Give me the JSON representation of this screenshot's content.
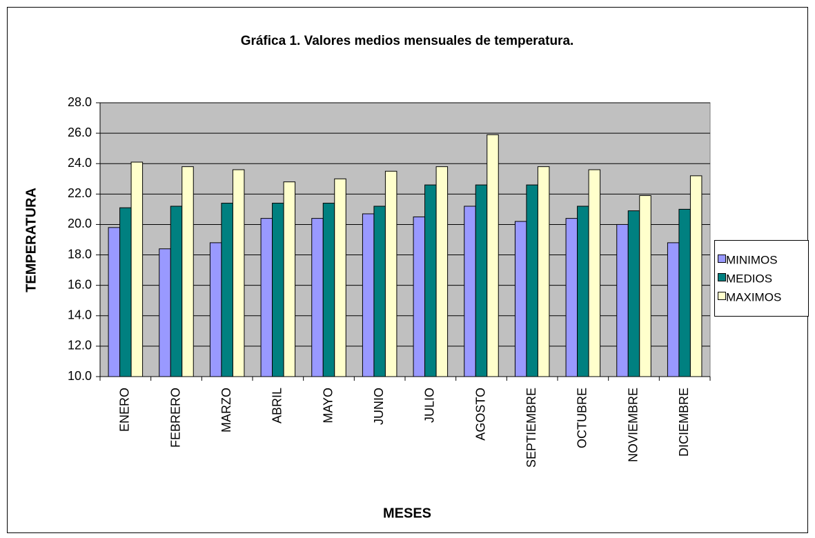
{
  "chart_data": {
    "type": "bar",
    "title": "Gráfica 1. Valores medios mensuales de temperatura.",
    "x_label": "MESES",
    "y_label": "TEMPERATURA",
    "categories": [
      "ENERO",
      "FEBRERO",
      "MARZO",
      "ABRIL",
      "MAYO",
      "JUNIO",
      "JULIO",
      "AGOSTO",
      "SEPTIEMBRE",
      "OCTUBRE",
      "NOVIEMBRE",
      "DICIEMBRE"
    ],
    "series": [
      {
        "name": "MINIMOS",
        "color": "#9999ff",
        "values": [
          19.8,
          18.4,
          18.8,
          20.4,
          20.4,
          20.7,
          20.5,
          21.2,
          20.2,
          20.4,
          20.0,
          18.8
        ]
      },
      {
        "name": "MEDIOS",
        "color": "#008080",
        "values": [
          21.1,
          21.2,
          21.4,
          21.4,
          21.4,
          21.2,
          22.6,
          22.6,
          22.6,
          21.2,
          20.9,
          21.0
        ]
      },
      {
        "name": "MAXIMOS",
        "color": "#ffffcc",
        "values": [
          24.1,
          23.8,
          23.6,
          22.8,
          23.0,
          23.5,
          23.8,
          25.9,
          23.8,
          23.6,
          21.9,
          23.2
        ]
      }
    ],
    "ylim": [
      10,
      28
    ],
    "yticks": [
      {
        "value": 10,
        "label": "10.0"
      },
      {
        "value": 12,
        "label": "12.0"
      },
      {
        "value": 14,
        "label": "14.0"
      },
      {
        "value": 16,
        "label": "16.0"
      },
      {
        "value": 18,
        "label": "18.0"
      },
      {
        "value": 20,
        "label": "20.0"
      },
      {
        "value": 22,
        "label": "22.0"
      },
      {
        "value": 24,
        "label": "24.0"
      },
      {
        "value": 26,
        "label": "26.0"
      },
      {
        "value": 28,
        "label": "28.0"
      }
    ],
    "grid": true,
    "legend": "right"
  }
}
